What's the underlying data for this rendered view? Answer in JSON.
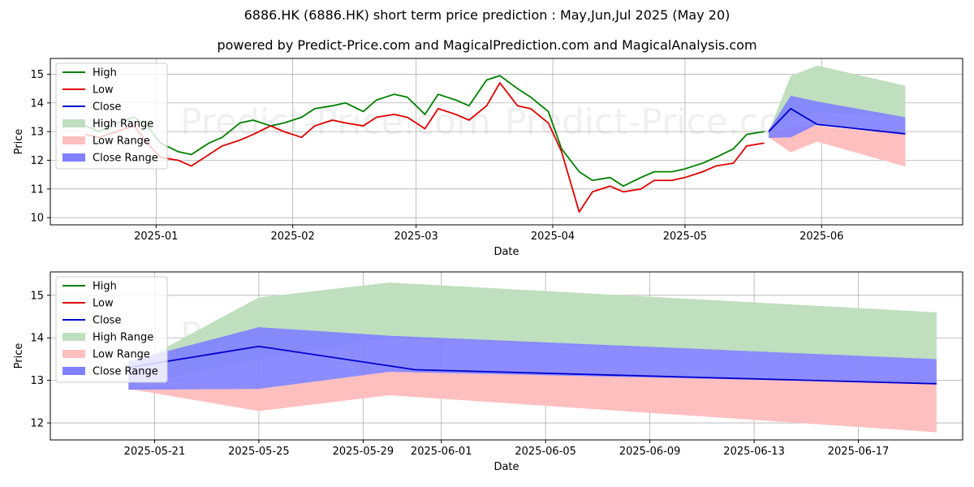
{
  "header": {
    "title": "6886.HK (6886.HK) short term price prediction : May,Jun,Jul 2025 (May 20)",
    "subtitle": "powered by Predict-Price.com and MagicalPrediction.com and MagicalAnalysis.com"
  },
  "watermark": "Predict-Price.com",
  "colors": {
    "high": "#008000",
    "low": "#e00000",
    "close": "#0000cc",
    "high_range": "#bfdfbf",
    "low_range": "#ffbfbf",
    "close_range": "#8080ff",
    "grid": "#b0b0b0"
  },
  "chart_data": [
    {
      "type": "line",
      "xlabel": "Date",
      "ylabel": "Price",
      "xlim": [
        "2024-12-08",
        "2025-07-03"
      ],
      "ylim": [
        9.75,
        15.55
      ],
      "x_ticks": [
        "2025-01-01",
        "2025-02-01",
        "2025-03-01",
        "2025-04-01",
        "2025-05-01",
        "2025-06-01"
      ],
      "x_tick_labels": [
        "2025-01",
        "2025-02",
        "2025-03",
        "2025-04",
        "2025-05",
        "2025-06"
      ],
      "y_ticks": [
        10,
        11,
        12,
        13,
        14,
        15
      ],
      "grid": true,
      "legend_position": "top-left",
      "legend": [
        "High",
        "Low",
        "Close",
        "High Range",
        "Low Range",
        "Close Range"
      ],
      "series": [
        {
          "name": "High",
          "x": [
            "2024-12-16",
            "2024-12-19",
            "2024-12-23",
            "2024-12-27",
            "2024-12-30",
            "2025-01-02",
            "2025-01-06",
            "2025-01-09",
            "2025-01-13",
            "2025-01-16",
            "2025-01-20",
            "2025-01-23",
            "2025-01-27",
            "2025-01-30",
            "2025-02-03",
            "2025-02-06",
            "2025-02-10",
            "2025-02-13",
            "2025-02-17",
            "2025-02-20",
            "2025-02-24",
            "2025-02-27",
            "2025-03-03",
            "2025-03-06",
            "2025-03-10",
            "2025-03-13",
            "2025-03-17",
            "2025-03-20",
            "2025-03-24",
            "2025-03-27",
            "2025-03-31",
            "2025-04-03",
            "2025-04-07",
            "2025-04-10",
            "2025-04-14",
            "2025-04-17",
            "2025-04-21",
            "2025-04-24",
            "2025-04-28",
            "2025-05-01",
            "2025-05-05",
            "2025-05-08",
            "2025-05-12",
            "2025-05-15",
            "2025-05-19"
          ],
          "values": [
            13.2,
            13.0,
            13.3,
            13.5,
            13.2,
            12.6,
            12.3,
            12.2,
            12.6,
            12.8,
            13.3,
            13.4,
            13.2,
            13.3,
            13.5,
            13.8,
            13.9,
            14.0,
            13.7,
            14.1,
            14.3,
            14.2,
            13.6,
            14.3,
            14.1,
            13.9,
            14.8,
            14.95,
            14.5,
            14.2,
            13.7,
            12.4,
            11.6,
            11.3,
            11.4,
            11.1,
            11.4,
            11.6,
            11.6,
            11.7,
            11.9,
            12.1,
            12.4,
            12.9,
            13.0
          ]
        },
        {
          "name": "Low",
          "x": [
            "2024-12-16",
            "2024-12-19",
            "2024-12-23",
            "2024-12-27",
            "2024-12-30",
            "2025-01-02",
            "2025-01-06",
            "2025-01-09",
            "2025-01-13",
            "2025-01-16",
            "2025-01-20",
            "2025-01-23",
            "2025-01-27",
            "2025-01-30",
            "2025-02-03",
            "2025-02-06",
            "2025-02-10",
            "2025-02-13",
            "2025-02-17",
            "2025-02-20",
            "2025-02-24",
            "2025-02-27",
            "2025-03-03",
            "2025-03-06",
            "2025-03-10",
            "2025-03-13",
            "2025-03-17",
            "2025-03-20",
            "2025-03-24",
            "2025-03-27",
            "2025-03-31",
            "2025-04-03",
            "2025-04-07",
            "2025-04-10",
            "2025-04-14",
            "2025-04-17",
            "2025-04-21",
            "2025-04-24",
            "2025-04-28",
            "2025-05-01",
            "2025-05-05",
            "2025-05-08",
            "2025-05-12",
            "2025-05-15",
            "2025-05-19"
          ],
          "values": [
            12.9,
            12.8,
            13.0,
            13.2,
            12.6,
            12.1,
            12.0,
            11.8,
            12.2,
            12.5,
            12.7,
            12.9,
            13.2,
            13.0,
            12.8,
            13.2,
            13.4,
            13.3,
            13.2,
            13.5,
            13.6,
            13.5,
            13.1,
            13.8,
            13.6,
            13.4,
            13.9,
            14.7,
            13.9,
            13.8,
            13.3,
            12.3,
            10.2,
            10.9,
            11.1,
            10.9,
            11.0,
            11.3,
            11.3,
            11.4,
            11.6,
            11.8,
            11.9,
            12.5,
            12.6
          ]
        },
        {
          "name": "Close",
          "x": [
            "2025-05-20",
            "2025-05-25",
            "2025-05-31",
            "2025-06-20"
          ],
          "values": [
            13.0,
            13.8,
            13.25,
            12.92
          ]
        }
      ],
      "ranges": [
        {
          "name": "High Range",
          "x": [
            "2025-05-20",
            "2025-05-25",
            "2025-05-31",
            "2025-06-20"
          ],
          "upper": [
            13.0,
            14.95,
            15.3,
            14.6
          ],
          "lower": [
            13.0,
            13.5,
            13.7,
            13.5
          ]
        },
        {
          "name": "Low Range",
          "x": [
            "2025-05-20",
            "2025-05-25",
            "2025-05-31",
            "2025-06-20"
          ],
          "upper": [
            12.8,
            13.2,
            13.2,
            12.9
          ],
          "lower": [
            12.8,
            12.28,
            12.65,
            11.78
          ]
        },
        {
          "name": "Close Range",
          "x": [
            "2025-05-20",
            "2025-05-25",
            "2025-05-31",
            "2025-06-20"
          ],
          "upper": [
            13.05,
            14.25,
            14.05,
            13.5
          ],
          "lower": [
            12.78,
            12.8,
            13.25,
            12.92
          ]
        }
      ]
    },
    {
      "type": "line",
      "xlabel": "Date",
      "ylabel": "Price",
      "xlim": [
        "2025-05-17",
        "2025-06-21"
      ],
      "ylim": [
        11.6,
        15.55
      ],
      "x_ticks": [
        "2025-05-21",
        "2025-05-25",
        "2025-05-29",
        "2025-06-01",
        "2025-06-05",
        "2025-06-09",
        "2025-06-13",
        "2025-06-17"
      ],
      "x_tick_labels": [
        "2025-05-21",
        "2025-05-25",
        "2025-05-29",
        "2025-06-01",
        "2025-06-05",
        "2025-06-09",
        "2025-06-13",
        "2025-06-17"
      ],
      "y_ticks": [
        12,
        13,
        14,
        15
      ],
      "grid": true,
      "legend_position": "top-left",
      "legend": [
        "High",
        "Low",
        "Close",
        "High Range",
        "Low Range",
        "Close Range"
      ],
      "series": [
        {
          "name": "Close",
          "x": [
            "2025-05-20",
            "2025-05-25",
            "2025-05-31",
            "2025-06-20"
          ],
          "values": [
            13.3,
            13.8,
            13.25,
            12.92
          ]
        }
      ],
      "ranges": [
        {
          "name": "High Range",
          "x": [
            "2025-05-20",
            "2025-05-25",
            "2025-05-30",
            "2025-06-20"
          ],
          "upper": [
            13.3,
            14.95,
            15.3,
            14.6
          ],
          "lower": [
            12.85,
            13.5,
            14.0,
            13.5
          ]
        },
        {
          "name": "Low Range",
          "x": [
            "2025-05-20",
            "2025-05-25",
            "2025-05-30",
            "2025-06-20"
          ],
          "upper": [
            12.85,
            12.8,
            13.2,
            12.92
          ],
          "lower": [
            12.8,
            12.28,
            12.65,
            11.78
          ]
        },
        {
          "name": "Close Range",
          "x": [
            "2025-05-20",
            "2025-05-25",
            "2025-05-30",
            "2025-06-20"
          ],
          "upper": [
            13.45,
            14.25,
            14.05,
            13.5
          ],
          "lower": [
            12.78,
            12.8,
            13.2,
            12.92
          ]
        }
      ]
    }
  ]
}
